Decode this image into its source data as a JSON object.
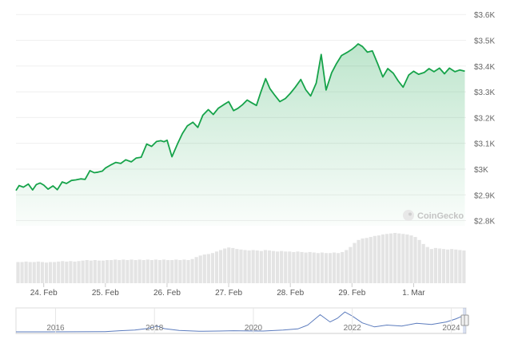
{
  "chart_data": [
    {
      "type": "area",
      "title": "",
      "xlabel": "",
      "ylabel": "",
      "x_ticks": [
        "24. Feb",
        "25. Feb",
        "26. Feb",
        "27. Feb",
        "28. Feb",
        "29. Feb",
        "1. Mar"
      ],
      "y_ticks": [
        {
          "value": 2800,
          "label": "$2.8K"
        },
        {
          "value": 2900,
          "label": "$2.9K"
        },
        {
          "value": 3000,
          "label": "$3K"
        },
        {
          "value": 3100,
          "label": "$3.1K"
        },
        {
          "value": 3200,
          "label": "$3.2K"
        },
        {
          "value": 3300,
          "label": "$3.3K"
        },
        {
          "value": 3400,
          "label": "$3.4K"
        },
        {
          "value": 3500,
          "label": "$3.5K"
        },
        {
          "value": 3600,
          "label": "$3.6K"
        }
      ],
      "ylim": [
        2780,
        3610
      ],
      "xlim": [
        23.55,
        30.85
      ],
      "grid": true,
      "y_axis_position": "right",
      "line_color": "#16a34a",
      "fill_color": "#16a34a",
      "series": [
        {
          "x": [
            23.55,
            23.6,
            23.67,
            23.75,
            23.82,
            23.88,
            23.94,
            24.0,
            24.07,
            24.15,
            24.22,
            24.3,
            24.37,
            24.45,
            24.52,
            24.6,
            24.67,
            24.75,
            24.82,
            24.88,
            24.95,
            25.0,
            25.08,
            25.17,
            25.25,
            25.33,
            25.42,
            25.5,
            25.58,
            25.67,
            25.75,
            25.83,
            25.9,
            25.95,
            26.0,
            26.08,
            26.17,
            26.25,
            26.33,
            26.42,
            26.5,
            26.58,
            26.67,
            26.75,
            26.83,
            26.92,
            27.0,
            27.08,
            27.15,
            27.22,
            27.3,
            27.37,
            27.45,
            27.52,
            27.6,
            27.67,
            27.75,
            27.83,
            27.92,
            28.0,
            28.08,
            28.17,
            28.25,
            28.33,
            28.42,
            28.5,
            28.58,
            28.67,
            28.75,
            28.83,
            28.92,
            29.0,
            29.05,
            29.1,
            29.17,
            29.25,
            29.33,
            29.42,
            29.5,
            29.58,
            29.67,
            29.75,
            29.83,
            29.92,
            30.0,
            30.08,
            30.17,
            30.25,
            30.33,
            30.42,
            30.5,
            30.58,
            30.67,
            30.75,
            30.83
          ],
          "values": [
            2917,
            2936,
            2930,
            2942,
            2919,
            2940,
            2946,
            2938,
            2922,
            2935,
            2920,
            2950,
            2944,
            2956,
            2958,
            2962,
            2960,
            2994,
            2986,
            2988,
            2992,
            3004,
            3015,
            3026,
            3022,
            3036,
            3028,
            3043,
            3046,
            3097,
            3088,
            3107,
            3110,
            3106,
            3112,
            3048,
            3098,
            3138,
            3168,
            3182,
            3162,
            3209,
            3231,
            3212,
            3236,
            3250,
            3262,
            3227,
            3236,
            3249,
            3268,
            3258,
            3247,
            3298,
            3351,
            3312,
            3286,
            3262,
            3274,
            3294,
            3318,
            3348,
            3308,
            3284,
            3334,
            3445,
            3307,
            3374,
            3410,
            3441,
            3453,
            3465,
            3475,
            3486,
            3476,
            3454,
            3459,
            3407,
            3358,
            3390,
            3372,
            3342,
            3318,
            3365,
            3380,
            3368,
            3375,
            3390,
            3378,
            3392,
            3370,
            3392,
            3378,
            3385,
            3380
          ]
        }
      ],
      "volume": {
        "relative_values": [
          0.42,
          0.42,
          0.43,
          0.42,
          0.42,
          0.43,
          0.42,
          0.41,
          0.42,
          0.42,
          0.43,
          0.44,
          0.43,
          0.44,
          0.43,
          0.44,
          0.45,
          0.46,
          0.45,
          0.46,
          0.45,
          0.45,
          0.46,
          0.46,
          0.47,
          0.46,
          0.47,
          0.46,
          0.47,
          0.46,
          0.47,
          0.46,
          0.47,
          0.46,
          0.47,
          0.46,
          0.47,
          0.46,
          0.46,
          0.47,
          0.46,
          0.47,
          0.46,
          0.48,
          0.52,
          0.55,
          0.57,
          0.58,
          0.6,
          0.63,
          0.66,
          0.69,
          0.71,
          0.7,
          0.68,
          0.67,
          0.66,
          0.65,
          0.66,
          0.65,
          0.64,
          0.66,
          0.65,
          0.64,
          0.63,
          0.64,
          0.63,
          0.63,
          0.62,
          0.63,
          0.62,
          0.61,
          0.62,
          0.61,
          0.6,
          0.61,
          0.6,
          0.6,
          0.61,
          0.6,
          0.62,
          0.66,
          0.72,
          0.8,
          0.86,
          0.89,
          0.9,
          0.92,
          0.94,
          0.95,
          0.97,
          0.98,
          0.99,
          1.0,
          0.99,
          0.98,
          0.97,
          0.95,
          0.92,
          0.86,
          0.78,
          0.72,
          0.68,
          0.7,
          0.69,
          0.68,
          0.67,
          0.68,
          0.67,
          0.66,
          0.65
        ]
      }
    },
    {
      "type": "line",
      "role": "range-navigator",
      "x_ticks": [
        "2016",
        "2018",
        "2020",
        "2022",
        "2024"
      ],
      "xlim": [
        2015.2,
        2024.3
      ],
      "series": [
        {
          "x": [
            2015.2,
            2015.8,
            2016.4,
            2017.0,
            2017.3,
            2017.6,
            2017.9,
            2018.05,
            2018.2,
            2018.5,
            2018.9,
            2019.3,
            2019.6,
            2019.9,
            2020.2,
            2020.6,
            2020.9,
            2021.1,
            2021.35,
            2021.55,
            2021.7,
            2021.85,
            2022.0,
            2022.2,
            2022.45,
            2022.7,
            2023.0,
            2023.3,
            2023.6,
            2023.9,
            2024.1,
            2024.2
          ],
          "values": [
            1,
            1,
            12,
            30,
            250,
            400,
            800,
            1300,
            700,
            300,
            120,
            180,
            250,
            190,
            180,
            400,
            650,
            1500,
            3800,
            2200,
            3000,
            4400,
            3500,
            2000,
            1100,
            1500,
            1300,
            1900,
            1650,
            2200,
            2900,
            3380
          ]
        }
      ]
    }
  ],
  "watermark": "CoinGecko"
}
